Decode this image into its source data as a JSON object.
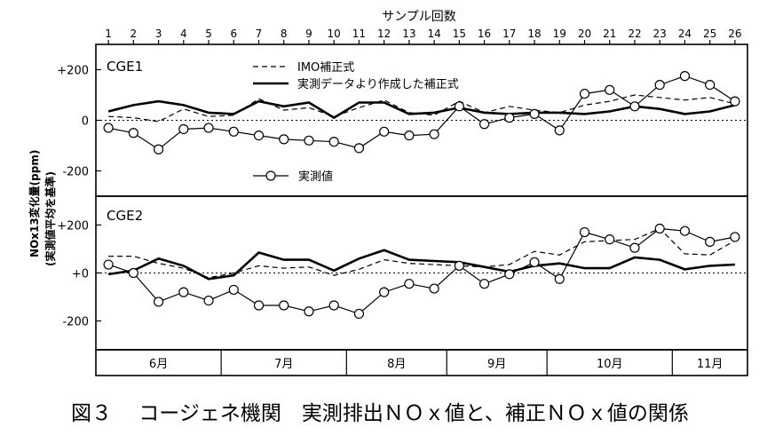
{
  "chart_data": {
    "type": "line",
    "top_axis_label": "サンプル回数",
    "samples": [
      1,
      2,
      3,
      4,
      5,
      6,
      7,
      8,
      9,
      10,
      11,
      12,
      13,
      14,
      15,
      16,
      17,
      18,
      19,
      20,
      21,
      22,
      23,
      24,
      25,
      26
    ],
    "ylabel": "NOx13変化量(ppm)",
    "ylabel_sub": "(実測値平均を基準)",
    "months": [
      {
        "label": "6月",
        "from": 0.5,
        "to": 5.5
      },
      {
        "label": "7月",
        "from": 5.5,
        "to": 10.5
      },
      {
        "label": "8月",
        "from": 10.5,
        "to": 14.5
      },
      {
        "label": "9月",
        "from": 14.5,
        "to": 18.5
      },
      {
        "label": "10月",
        "from": 18.5,
        "to": 23.5
      },
      {
        "label": "11月",
        "from": 23.5,
        "to": 26.5
      }
    ],
    "panels": [
      {
        "name": "CGE1",
        "ylim": [
          -300,
          300
        ],
        "yticks": [
          200,
          0,
          -200
        ],
        "ytick_labels": [
          "+200",
          "0",
          "-200"
        ],
        "legend": {
          "imo": "IMO補正式",
          "fit": "実測データより作成した補正式",
          "measured": "実測値"
        },
        "series": [
          {
            "name": "IMO補正式",
            "style": "dashed",
            "values": [
              15,
              10,
              -5,
              45,
              15,
              20,
              85,
              40,
              50,
              15,
              50,
              80,
              30,
              20,
              75,
              30,
              55,
              40,
              30,
              60,
              75,
              100,
              90,
              80,
              90,
              65
            ]
          },
          {
            "name": "実測データより作成した補正式",
            "style": "solid",
            "values": [
              35,
              60,
              75,
              60,
              30,
              25,
              75,
              55,
              70,
              10,
              70,
              70,
              25,
              30,
              50,
              30,
              25,
              30,
              30,
              25,
              35,
              55,
              45,
              25,
              35,
              60
            ]
          },
          {
            "name": "実測値",
            "style": "circle",
            "values": [
              -30,
              -50,
              -115,
              -35,
              -30,
              -45,
              -60,
              -75,
              -80,
              -85,
              -110,
              -45,
              -60,
              -55,
              55,
              -15,
              10,
              25,
              -40,
              105,
              120,
              55,
              140,
              175,
              140,
              75
            ]
          }
        ]
      },
      {
        "name": "CGE2",
        "ylim": [
          -320,
          320
        ],
        "yticks": [
          200,
          0,
          -200
        ],
        "ytick_labels": [
          "+200",
          "+0",
          "-200"
        ],
        "series": [
          {
            "name": "IMO補正式",
            "style": "dashed",
            "values": [
              70,
              70,
              40,
              20,
              -20,
              0,
              30,
              20,
              25,
              -10,
              15,
              55,
              40,
              35,
              30,
              25,
              35,
              90,
              75,
              130,
              135,
              140,
              185,
              80,
              75,
              135
            ]
          },
          {
            "name": "実測データより作成した補正式",
            "style": "solid",
            "values": [
              -5,
              10,
              60,
              30,
              -25,
              -10,
              85,
              55,
              55,
              10,
              60,
              95,
              55,
              50,
              45,
              25,
              5,
              30,
              40,
              20,
              20,
              65,
              55,
              15,
              30,
              35
            ]
          },
          {
            "name": "実測値",
            "style": "circle",
            "values": [
              35,
              0,
              -120,
              -80,
              -115,
              -70,
              -135,
              -135,
              -160,
              -135,
              -170,
              -80,
              -45,
              -65,
              30,
              -45,
              -5,
              45,
              -25,
              170,
              140,
              105,
              185,
              175,
              130,
              150
            ]
          }
        ]
      }
    ]
  },
  "caption": "図３　 コージェネ機関　実測排出ＮＯｘ値と、補正ＮＯｘ値の関係"
}
